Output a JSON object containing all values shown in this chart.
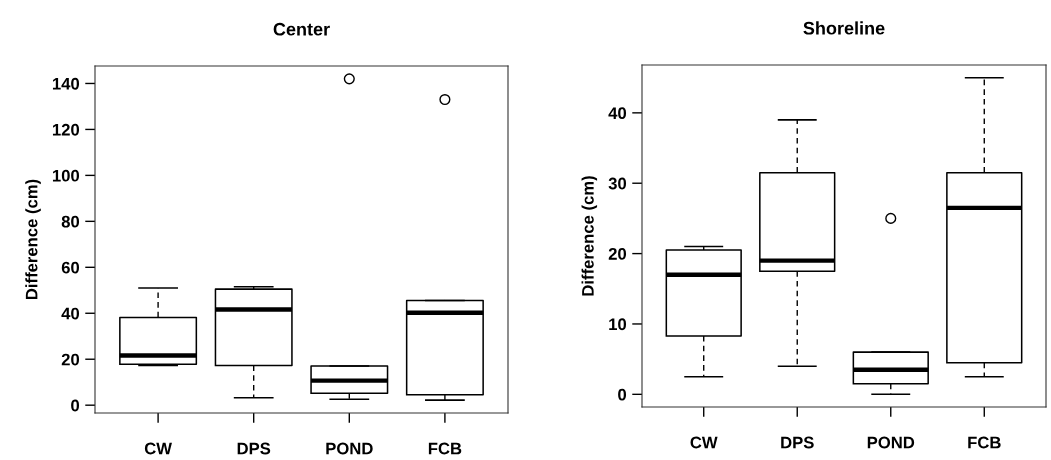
{
  "chart_data": [
    {
      "type": "box",
      "title": "Center",
      "ylabel": "Difference (cm)",
      "categories": [
        "CW",
        "DPS",
        "POND",
        "FCB"
      ],
      "boxes": [
        {
          "low": 17.3,
          "q1": 17.8,
          "median": 21.6,
          "q3": 38.2,
          "high": 51
        },
        {
          "low": 3.2,
          "q1": 17.3,
          "median": 41.6,
          "q3": 50.5,
          "high": 51.5
        },
        {
          "low": 2.6,
          "q1": 5.2,
          "median": 10.7,
          "q3": 17.1,
          "high": 17.1,
          "outliers": [
            142
          ]
        },
        {
          "low": 2.2,
          "q1": 4.5,
          "median": 40.2,
          "q3": 45.6,
          "high": 45.6,
          "outliers": [
            133
          ]
        }
      ],
      "ylim": [
        -3.4,
        147.6
      ],
      "yticks": [
        0,
        20,
        40,
        60,
        80,
        100,
        120,
        140
      ]
    },
    {
      "type": "box",
      "title": "Shoreline",
      "ylabel": "Difference (cm)",
      "categories": [
        "CW",
        "DPS",
        "POND",
        "FCB"
      ],
      "boxes": [
        {
          "low": 2.5,
          "q1": 8.3,
          "median": 17,
          "q3": 20.5,
          "high": 21
        },
        {
          "low": 4,
          "q1": 17.5,
          "median": 19,
          "q3": 31.5,
          "high": 39
        },
        {
          "low": 0,
          "q1": 1.5,
          "median": 3.5,
          "q3": 6,
          "high": 6,
          "outliers": [
            25
          ]
        },
        {
          "low": 2.5,
          "q1": 4.5,
          "median": 26.5,
          "q3": 31.5,
          "high": 45
        }
      ],
      "ylim": [
        -1.8,
        46.8
      ],
      "yticks": [
        0,
        10,
        20,
        30,
        40
      ]
    }
  ]
}
